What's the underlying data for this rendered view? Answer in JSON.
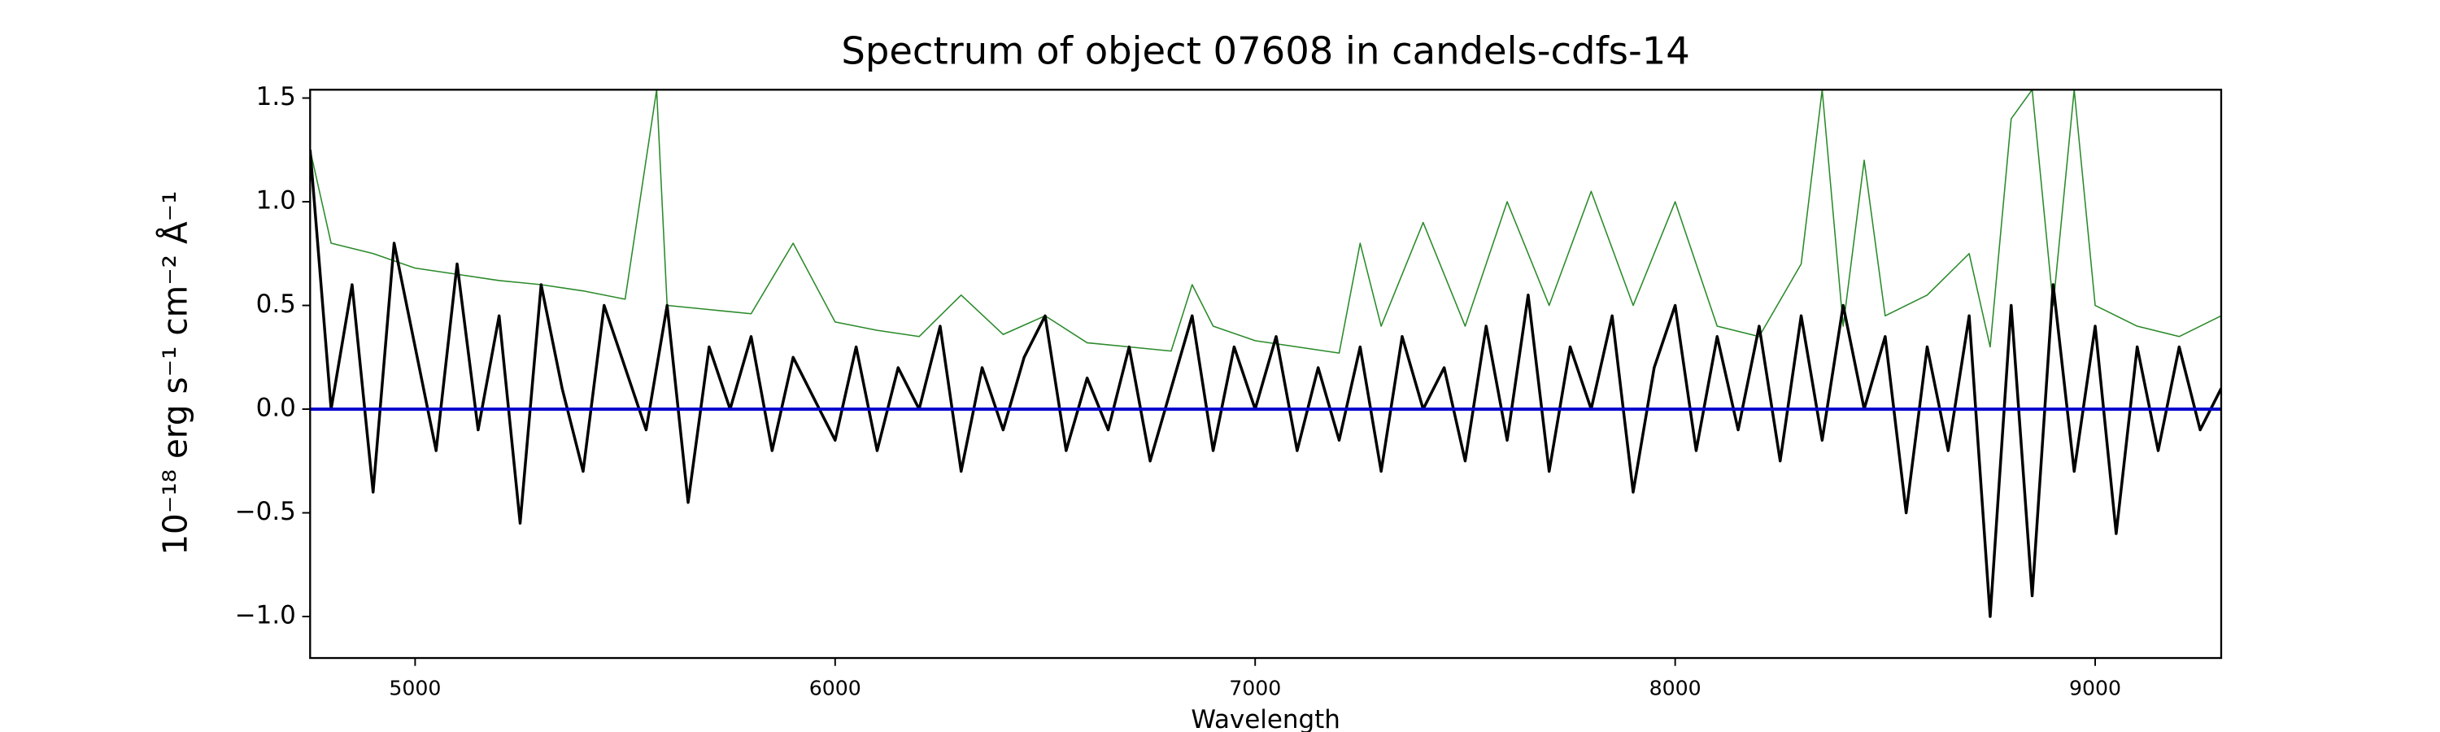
{
  "chart_data": {
    "type": "line",
    "title": "Spectrum of object 07608 in candels-cdfs-14",
    "x_label": "Wavelength",
    "y_label": "10⁻¹⁸ erg s⁻¹ cm⁻² Å⁻¹",
    "xlim": [
      4750,
      9300
    ],
    "ylim": [
      -1.2,
      1.54
    ],
    "xticks": [
      5000,
      6000,
      7000,
      8000,
      9000
    ],
    "yticks": [
      {
        "value": -1.0,
        "label": "−1.0"
      },
      {
        "value": -0.5,
        "label": "−0.5"
      },
      {
        "value": 0,
        "label": "0.0"
      },
      0.5,
      {
        "value": 1.0,
        "label": "1.0"
      },
      {
        "value": 1.5,
        "label": "1.5"
      }
    ],
    "series": [
      {
        "color": "#2a8a2a",
        "width": 0.8,
        "x": [
          4750,
          4800,
          4900,
          5000,
          5100,
          5200,
          5300,
          5400,
          5500,
          5575,
          5600,
          5700,
          5800,
          5900,
          6000,
          6100,
          6200,
          6300,
          6400,
          6500,
          6600,
          6700,
          6800,
          6850,
          6900,
          7000,
          7100,
          7200,
          7250,
          7300,
          7400,
          7500,
          7600,
          7700,
          7800,
          7900,
          8000,
          8100,
          8200,
          8300,
          8350,
          8400,
          8450,
          8500,
          8600,
          8700,
          8750,
          8800,
          8850,
          8900,
          8950,
          9000,
          9100,
          9200,
          9300
        ],
        "values": [
          1.25,
          0.8,
          0.75,
          0.68,
          0.65,
          0.62,
          0.6,
          0.57,
          0.53,
          1.54,
          0.5,
          0.48,
          0.46,
          0.8,
          0.42,
          0.38,
          0.35,
          0.55,
          0.36,
          0.45,
          0.32,
          0.3,
          0.28,
          0.6,
          0.4,
          0.33,
          0.3,
          0.27,
          0.8,
          0.4,
          0.9,
          0.4,
          1.0,
          0.5,
          1.05,
          0.5,
          1.0,
          0.4,
          0.35,
          0.7,
          1.54,
          0.4,
          1.2,
          0.45,
          0.55,
          0.75,
          0.3,
          1.4,
          1.54,
          0.5,
          1.54,
          0.5,
          0.4,
          0.35,
          0.45
        ]
      },
      {
        "color": "#000000",
        "width": 1.8,
        "x": [
          4750,
          4800,
          4850,
          4900,
          4950,
          5000,
          5050,
          5100,
          5150,
          5200,
          5250,
          5300,
          5350,
          5400,
          5450,
          5500,
          5550,
          5600,
          5650,
          5700,
          5750,
          5800,
          5850,
          5900,
          5950,
          6000,
          6050,
          6100,
          6150,
          6200,
          6250,
          6300,
          6350,
          6400,
          6450,
          6500,
          6550,
          6600,
          6650,
          6700,
          6750,
          6800,
          6850,
          6900,
          6950,
          7000,
          7050,
          7100,
          7150,
          7200,
          7250,
          7300,
          7350,
          7400,
          7450,
          7500,
          7550,
          7600,
          7650,
          7700,
          7750,
          7800,
          7850,
          7900,
          7950,
          8000,
          8050,
          8100,
          8150,
          8200,
          8250,
          8300,
          8350,
          8400,
          8450,
          8500,
          8550,
          8600,
          8650,
          8700,
          8750,
          8800,
          8850,
          8900,
          8950,
          9000,
          9050,
          9100,
          9150,
          9200,
          9250,
          9300
        ],
        "values": [
          1.25,
          0.0,
          0.6,
          -0.4,
          0.8,
          0.3,
          -0.2,
          0.7,
          -0.1,
          0.45,
          -0.55,
          0.6,
          0.1,
          -0.3,
          0.5,
          0.2,
          -0.1,
          0.5,
          -0.45,
          0.3,
          0.0,
          0.35,
          -0.2,
          0.25,
          0.05,
          -0.15,
          0.3,
          -0.2,
          0.2,
          0.0,
          0.4,
          -0.3,
          0.2,
          -0.1,
          0.25,
          0.45,
          -0.2,
          0.15,
          -0.1,
          0.3,
          -0.25,
          0.1,
          0.45,
          -0.2,
          0.3,
          0.0,
          0.35,
          -0.2,
          0.2,
          -0.15,
          0.3,
          -0.3,
          0.35,
          0.0,
          0.2,
          -0.25,
          0.4,
          -0.15,
          0.55,
          -0.3,
          0.3,
          0.0,
          0.45,
          -0.4,
          0.2,
          0.5,
          -0.2,
          0.35,
          -0.1,
          0.4,
          -0.25,
          0.45,
          -0.15,
          0.5,
          0.0,
          0.35,
          -0.5,
          0.3,
          -0.2,
          0.45,
          -1.0,
          0.5,
          -0.9,
          0.6,
          -0.3,
          0.4,
          -0.6,
          0.3,
          -0.2,
          0.3,
          -0.1,
          0.1
        ]
      },
      {
        "color": "#0000cc",
        "width": 2,
        "x": [
          4750,
          9300
        ],
        "values": [
          0,
          0
        ]
      }
    ]
  }
}
